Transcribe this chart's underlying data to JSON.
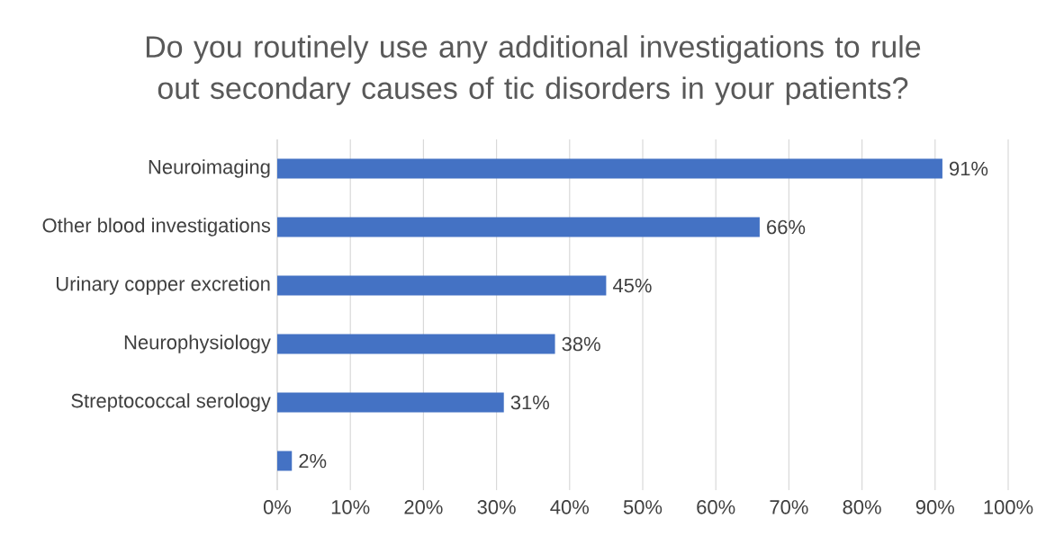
{
  "chart_data": {
    "type": "bar",
    "orientation": "horizontal",
    "title": "Do you routinely use any additional investigations to rule out secondary causes of tic disorders in your patients?",
    "categories": [
      "Neuroimaging",
      "Other blood investigations",
      "Urinary copper excretion",
      "Neurophysiology",
      "Streptococcal serology",
      null
    ],
    "values": [
      91,
      66,
      45,
      38,
      31,
      2
    ],
    "value_labels": [
      "91%",
      "66%",
      "45%",
      "38%",
      "31%",
      "2%"
    ],
    "color": "#4472c4",
    "xlim": [
      0,
      100
    ],
    "xticks": [
      {
        "value": 0,
        "label": "0%"
      },
      {
        "value": 10,
        "label": "10%"
      },
      {
        "value": 20,
        "label": "20%"
      },
      {
        "value": 30,
        "label": "30%"
      },
      {
        "value": 40,
        "label": "40%"
      },
      {
        "value": 50,
        "label": "50%"
      },
      {
        "value": 60,
        "label": "60%"
      },
      {
        "value": 70,
        "label": "70%"
      },
      {
        "value": 80,
        "label": "80%"
      },
      {
        "value": 90,
        "label": "90%"
      },
      {
        "value": 100,
        "label": "100%"
      }
    ],
    "grid": "x"
  }
}
